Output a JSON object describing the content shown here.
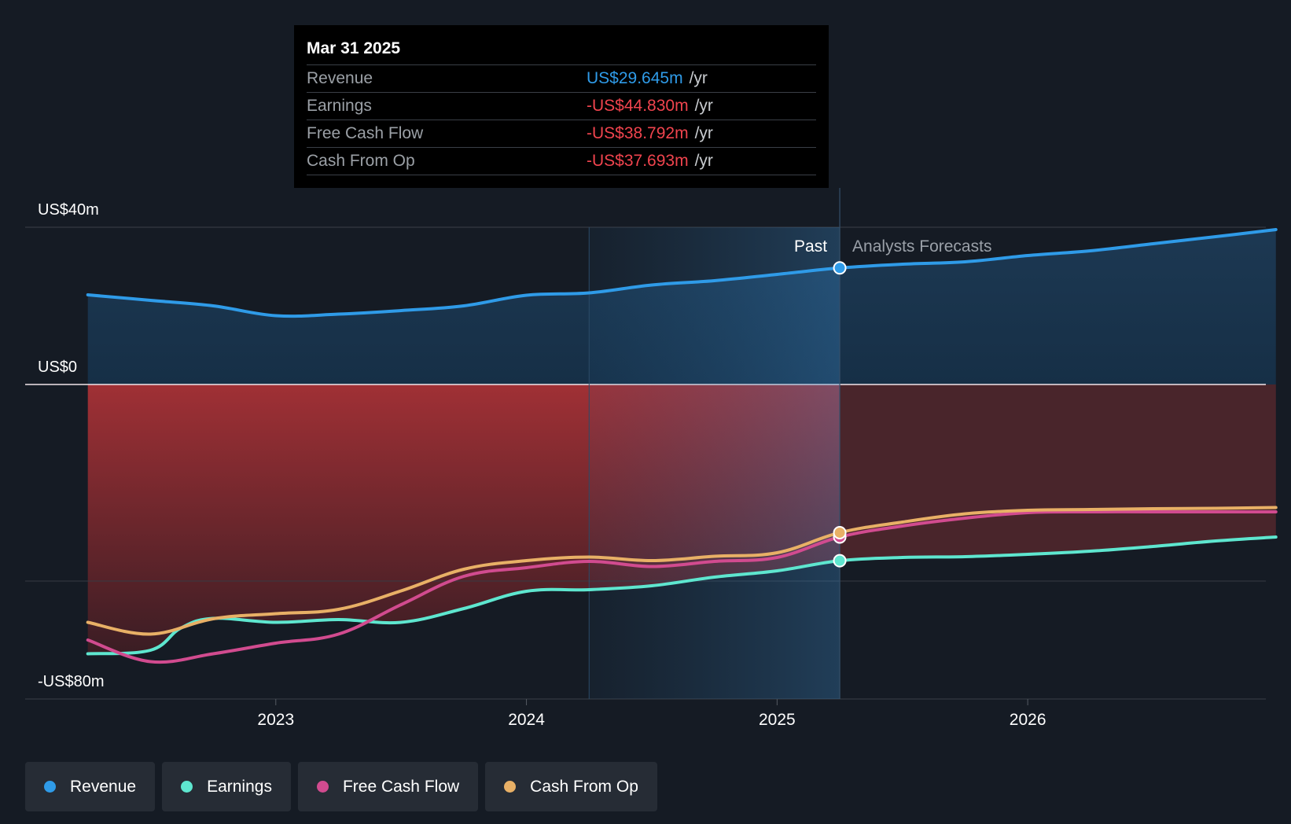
{
  "tooltip": {
    "date": "Mar 31 2025",
    "rows": [
      {
        "label": "Revenue",
        "value": "US$29.645m",
        "unit": "/yr"
      },
      {
        "label": "Earnings",
        "value": "-US$44.830m",
        "unit": "/yr"
      },
      {
        "label": "Free Cash Flow",
        "value": "-US$38.792m",
        "unit": "/yr"
      },
      {
        "label": "Cash From Op",
        "value": "-US$37.693m",
        "unit": "/yr"
      }
    ]
  },
  "legend": [
    {
      "label": "Revenue",
      "color": "#2f9be8"
    },
    {
      "label": "Earnings",
      "color": "#5ee6cf"
    },
    {
      "label": "Free Cash Flow",
      "color": "#d14b8f"
    },
    {
      "label": "Cash From Op",
      "color": "#e8b066"
    }
  ],
  "chart_data": {
    "type": "line",
    "title": "",
    "xlabel": "",
    "ylabel": "",
    "ylim": [
      -80,
      40
    ],
    "y_tick_labels": [
      {
        "value": 40,
        "label": "US$40m"
      },
      {
        "value": 0,
        "label": "US$0"
      },
      {
        "value": -80,
        "label": "-US$80m"
      }
    ],
    "x_ticks": [
      {
        "value": 2023,
        "label": "2023"
      },
      {
        "value": 2024,
        "label": "2024"
      },
      {
        "value": 2025,
        "label": "2025"
      },
      {
        "value": 2026,
        "label": "2026"
      }
    ],
    "xlim": [
      2022.0,
      2026.95
    ],
    "highlight_start": 2024.25,
    "past_end": 2025.25,
    "past_label": "Past",
    "forecast_label": "Analysts Forecasts",
    "series": [
      {
        "name": "Revenue",
        "color": "#2f9be8",
        "x": [
          2022.25,
          2022.5,
          2022.75,
          2023.0,
          2023.25,
          2023.5,
          2023.75,
          2024.0,
          2024.25,
          2024.5,
          2024.75,
          2025.0,
          2025.25,
          2025.5,
          2025.75,
          2026.0,
          2026.25,
          2026.5,
          2026.75,
          2026.99
        ],
        "values": [
          22.8,
          21.4,
          20.0,
          17.5,
          17.9,
          18.8,
          20.0,
          22.7,
          23.3,
          25.3,
          26.4,
          28.0,
          29.645,
          30.6,
          31.2,
          32.8,
          34.0,
          35.8,
          37.6,
          39.4
        ]
      },
      {
        "name": "Earnings",
        "color": "#5ee6cf",
        "x": [
          2022.25,
          2022.5,
          2022.62,
          2022.75,
          2023.0,
          2023.25,
          2023.5,
          2023.75,
          2024.0,
          2024.25,
          2024.5,
          2024.75,
          2025.0,
          2025.25,
          2025.5,
          2025.75,
          2026.0,
          2026.25,
          2026.5,
          2026.75,
          2026.99
        ],
        "values": [
          -68.5,
          -67.6,
          -62.0,
          -59.5,
          -60.5,
          -59.8,
          -60.5,
          -57.0,
          -52.6,
          -52.2,
          -51.2,
          -49.0,
          -47.4,
          -44.83,
          -44.0,
          -43.8,
          -43.2,
          -42.4,
          -41.2,
          -39.8,
          -38.8
        ]
      },
      {
        "name": "Free Cash Flow",
        "color": "#d14b8f",
        "x": [
          2022.25,
          2022.5,
          2022.75,
          2023.0,
          2023.25,
          2023.5,
          2023.75,
          2024.0,
          2024.25,
          2024.5,
          2024.75,
          2025.0,
          2025.25,
          2025.5,
          2025.75,
          2026.0,
          2026.25,
          2026.5,
          2026.75,
          2026.99
        ],
        "values": [
          -65.0,
          -70.5,
          -68.5,
          -65.8,
          -63.5,
          -56.0,
          -48.8,
          -46.6,
          -45.0,
          -46.3,
          -45.0,
          -44.0,
          -38.792,
          -36.0,
          -34.0,
          -32.6,
          -32.4,
          -32.4,
          -32.4,
          -32.4
        ]
      },
      {
        "name": "Cash From Op",
        "color": "#e8b066",
        "x": [
          2022.25,
          2022.5,
          2022.75,
          2023.0,
          2023.25,
          2023.5,
          2023.75,
          2024.0,
          2024.25,
          2024.5,
          2024.75,
          2025.0,
          2025.25,
          2025.5,
          2025.75,
          2026.0,
          2026.25,
          2026.5,
          2026.75,
          2026.99
        ],
        "values": [
          -60.5,
          -63.5,
          -59.6,
          -58.3,
          -57.2,
          -52.5,
          -47.0,
          -44.8,
          -43.9,
          -44.8,
          -43.7,
          -42.8,
          -37.693,
          -35.0,
          -32.9,
          -32.0,
          -31.8,
          -31.6,
          -31.5,
          -31.3
        ]
      }
    ]
  }
}
